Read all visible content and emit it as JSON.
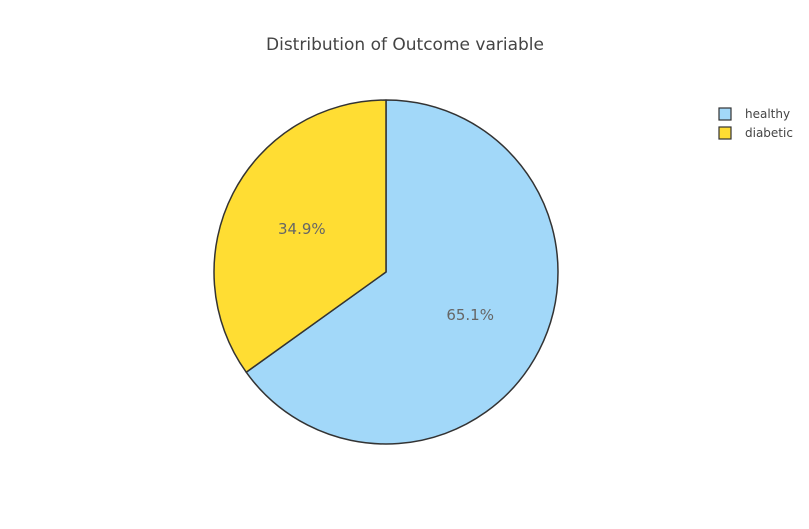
{
  "chart_data": {
    "type": "pie",
    "title": "Distribution of Outcome variable",
    "labels": [
      "healthy",
      "diabetic"
    ],
    "values": [
      65.1,
      34.9
    ],
    "value_labels": [
      "65.1%",
      "34.9%"
    ],
    "colors": [
      "#A2D8F9",
      "#FFDD33"
    ],
    "line_color": "#333333",
    "direction": "clockwise",
    "start_angle_deg": 90,
    "legend": {
      "position": "top-right",
      "entries": [
        "healthy",
        "diabetic"
      ]
    }
  }
}
